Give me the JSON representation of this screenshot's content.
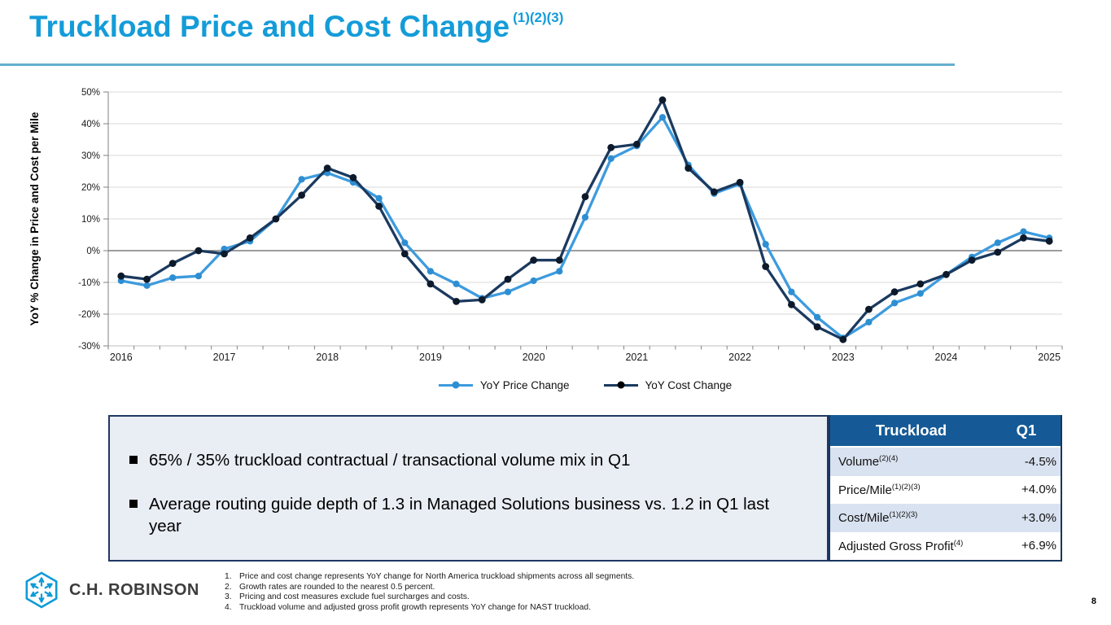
{
  "slide": {
    "title": "Truckload Price and Cost Change",
    "title_superscript": "(1)(2)(3)",
    "page_number": "8"
  },
  "colors": {
    "title_accent": "#149CD8",
    "title_rule": "#65AECE",
    "price_line": "#3D9BDE",
    "price_marker": "#2E8ED2",
    "cost_line": "#1B3A5F",
    "cost_marker": "#0D1A2B",
    "table_header_bg": "#155A96",
    "table_alt_row_bg": "#D9E2F0",
    "callout_bg": "#E9EDF4",
    "navy_border": "#1F3864",
    "logo_blue": "#0F9BD7"
  },
  "chart_data": {
    "type": "line",
    "title": "",
    "xlabel": "",
    "ylabel": "YoY % Change in Price and Cost per Mile",
    "ylim": [
      -30,
      50
    ],
    "ytick_step": 10,
    "ytick_suffix": "%",
    "grid": true,
    "legend_position": "bottom",
    "x_years": [
      2016,
      2017,
      2018,
      2019,
      2020,
      2021,
      2022,
      2023,
      2024,
      2025
    ],
    "points_per_year": 4,
    "note": "37 quarterly points, 2016 Q1 through 2025 Q1, values in percent",
    "series": [
      {
        "name": "YoY Price Change",
        "values": [
          -9.5,
          -11,
          -8.5,
          -8,
          0.5,
          3,
          10,
          22.5,
          24.5,
          21.5,
          16.5,
          2.5,
          -6.5,
          -10.5,
          -15,
          -13,
          -9.5,
          -6.5,
          10.5,
          29,
          33,
          42,
          27,
          18,
          21,
          2,
          -13,
          -21,
          -27.5,
          -22.5,
          -16.5,
          -13.5,
          -7.5,
          -2,
          2.5,
          6,
          4
        ]
      },
      {
        "name": "YoY Cost Change",
        "values": [
          -8,
          -9,
          -4,
          0,
          -1,
          4,
          10,
          17.5,
          26,
          23,
          14,
          -1,
          -10.5,
          -16,
          -15.5,
          -9,
          -3,
          -3,
          17,
          32.5,
          33.5,
          47.5,
          26,
          18.5,
          21.5,
          -5,
          -17,
          -24,
          -28,
          -18.5,
          -13,
          -10.5,
          -7.5,
          -3,
          -0.5,
          4,
          3
        ]
      }
    ]
  },
  "callout": {
    "bullets": [
      "65% / 35% truckload contractual / transactional volume mix in Q1",
      "Average routing guide depth of 1.3 in Managed Solutions business vs. 1.2 in Q1 last year"
    ]
  },
  "truckload_table": {
    "headers": [
      "Truckload",
      "Q1"
    ],
    "rows": [
      {
        "label": "Volume",
        "sup": "(2)(4)",
        "value": "-4.5%"
      },
      {
        "label": "Price/Mile",
        "sup": "(1)(2)(3)",
        "value": "+4.0%"
      },
      {
        "label": "Cost/Mile",
        "sup": "(1)(2)(3)",
        "value": "+3.0%"
      },
      {
        "label": "Adjusted Gross Profit",
        "sup": "(4)",
        "value": "+6.9%"
      }
    ]
  },
  "footnotes": [
    "Price and cost change represents YoY change for North America truckload shipments across all segments.",
    "Growth rates are rounded to the nearest 0.5 percent.",
    "Pricing and cost measures exclude fuel surcharges and costs.",
    "Truckload volume and adjusted gross profit growth represents YoY change for NAST truckload."
  ],
  "logo": {
    "text": "C.H. ROBINSON"
  }
}
